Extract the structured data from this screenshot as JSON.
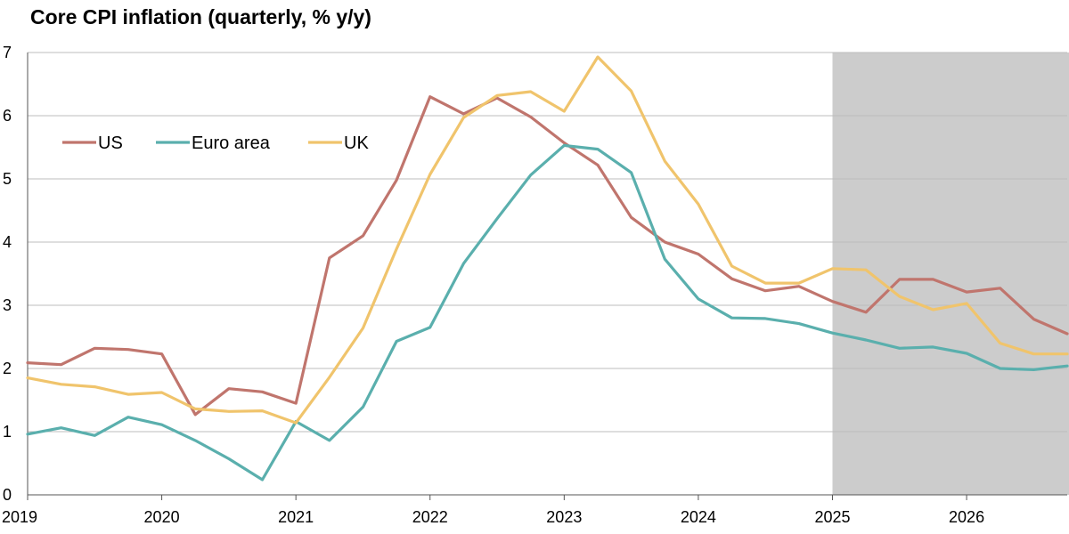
{
  "chart_data": {
    "type": "line",
    "title": "Core CPI inflation (quarterly, % y/y)",
    "xlabel": "",
    "ylabel": "",
    "x_tick_labels": [
      "2019",
      "2020",
      "2021",
      "2022",
      "2023",
      "2024",
      "2025",
      "2026"
    ],
    "y_tick_labels": [
      "0",
      "1",
      "2",
      "3",
      "4",
      "5",
      "6",
      "7"
    ],
    "ylim": [
      0,
      7
    ],
    "x_range": [
      "2019 Q1",
      "2026 Q4"
    ],
    "x": [
      "2019 Q1",
      "2019 Q2",
      "2019 Q3",
      "2019 Q4",
      "2020 Q1",
      "2020 Q2",
      "2020 Q3",
      "2020 Q4",
      "2021 Q1",
      "2021 Q2",
      "2021 Q3",
      "2021 Q4",
      "2022 Q1",
      "2022 Q2",
      "2022 Q3",
      "2022 Q4",
      "2023 Q1",
      "2023 Q2",
      "2023 Q3",
      "2023 Q4",
      "2024 Q1",
      "2024 Q2",
      "2024 Q3",
      "2024 Q4",
      "2025 Q1",
      "2025 Q2",
      "2025 Q3",
      "2025 Q4",
      "2026 Q1",
      "2026 Q2",
      "2026 Q3",
      "2026 Q4"
    ],
    "series": [
      {
        "name": "US",
        "color": "#c0756d",
        "values": [
          2.09,
          2.06,
          2.32,
          2.3,
          2.23,
          1.27,
          1.68,
          1.63,
          1.45,
          3.75,
          4.1,
          4.98,
          6.3,
          6.03,
          6.28,
          5.98,
          5.57,
          5.22,
          4.39,
          4.0,
          3.81,
          3.42,
          3.23,
          3.3,
          3.06,
          2.89,
          3.41,
          3.41,
          3.21,
          3.27,
          2.78,
          2.55
        ]
      },
      {
        "name": "Euro area",
        "color": "#5aafad",
        "values": [
          0.96,
          1.06,
          0.94,
          1.23,
          1.11,
          0.86,
          0.57,
          0.24,
          1.16,
          0.86,
          1.39,
          2.43,
          2.65,
          3.66,
          4.37,
          5.06,
          5.53,
          5.47,
          5.1,
          3.73,
          3.1,
          2.8,
          2.79,
          2.71,
          2.56,
          2.45,
          2.32,
          2.34,
          2.24,
          2.0,
          1.98,
          2.04
        ]
      },
      {
        "name": "UK",
        "color": "#f0c46c",
        "values": [
          1.85,
          1.75,
          1.71,
          1.59,
          1.62,
          1.36,
          1.32,
          1.33,
          1.14,
          1.86,
          2.64,
          3.89,
          5.07,
          5.97,
          6.32,
          6.38,
          6.07,
          6.93,
          6.39,
          5.28,
          4.6,
          3.62,
          3.35,
          3.35,
          3.58,
          3.56,
          3.14,
          2.93,
          3.03,
          2.4,
          2.23,
          2.23
        ]
      }
    ],
    "shaded_region": {
      "from": "2025 Q1",
      "to": "2026 Q4",
      "color": "#cccccc"
    },
    "grid": true,
    "legend_position": "top-left"
  }
}
